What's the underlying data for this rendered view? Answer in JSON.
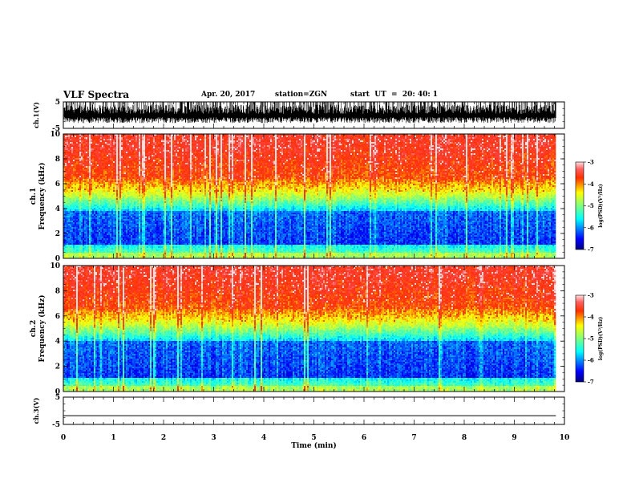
{
  "header": {
    "title": "VLF Spectra",
    "date": "Apr. 20, 2017",
    "station": "station=ZGN",
    "start": "start  UT  =  20: 40: 1"
  },
  "chart_data": [
    {
      "type": "line",
      "name": "ch1-waveform",
      "ylabel": "ch.1(V)",
      "ylim": [
        -5,
        5
      ],
      "yticks": [
        "5",
        "-5"
      ],
      "description_values": {
        "amplitude_range": [
          -3,
          5
        ]
      }
    },
    {
      "type": "heatmap",
      "name": "ch1-spectrogram",
      "ylabel": "ch.1",
      "ylabel2": "Frequency (kHz)",
      "ylim": [
        0,
        10
      ],
      "yticks": [
        "0",
        "2",
        "4",
        "6",
        "8",
        "10"
      ],
      "colorbar": {
        "label": "log(PSD)(V²/Hz)",
        "range": [
          -7,
          -3
        ],
        "ticks": [
          "-3",
          "-4",
          "-5",
          "-6",
          "-7"
        ]
      }
    },
    {
      "type": "heatmap",
      "name": "ch2-spectrogram",
      "ylabel": "ch.2",
      "ylabel2": "Frequency (kHz)",
      "ylim": [
        0,
        10
      ],
      "yticks": [
        "0",
        "2",
        "4",
        "6",
        "8",
        "10"
      ],
      "colorbar": {
        "label": "log(PSD)(V²/Hz)",
        "range": [
          -7,
          -3
        ],
        "ticks": [
          "-3",
          "-4",
          "-5",
          "-6",
          "-7"
        ]
      }
    },
    {
      "type": "line",
      "name": "ch3-waveform",
      "ylabel": "ch.3(V)",
      "ylim": [
        -5,
        5
      ],
      "yticks": [
        "5",
        "-5"
      ],
      "x": [
        0,
        9.83
      ],
      "y": [
        -1.8,
        -1.8
      ]
    }
  ],
  "xaxis": {
    "label": "Time (min)",
    "xlim": [
      0,
      10
    ],
    "ticks": [
      "0",
      "1",
      "2",
      "3",
      "4",
      "5",
      "6",
      "7",
      "8",
      "9",
      "10"
    ],
    "data_end": 9.83
  },
  "colors": {
    "jet": [
      "#00007f",
      "#0000ff",
      "#007fff",
      "#00ffff",
      "#7fff7f",
      "#ffff00",
      "#ff7f00",
      "#ff0000",
      "#ff4040",
      "#ffc0c0"
    ]
  }
}
